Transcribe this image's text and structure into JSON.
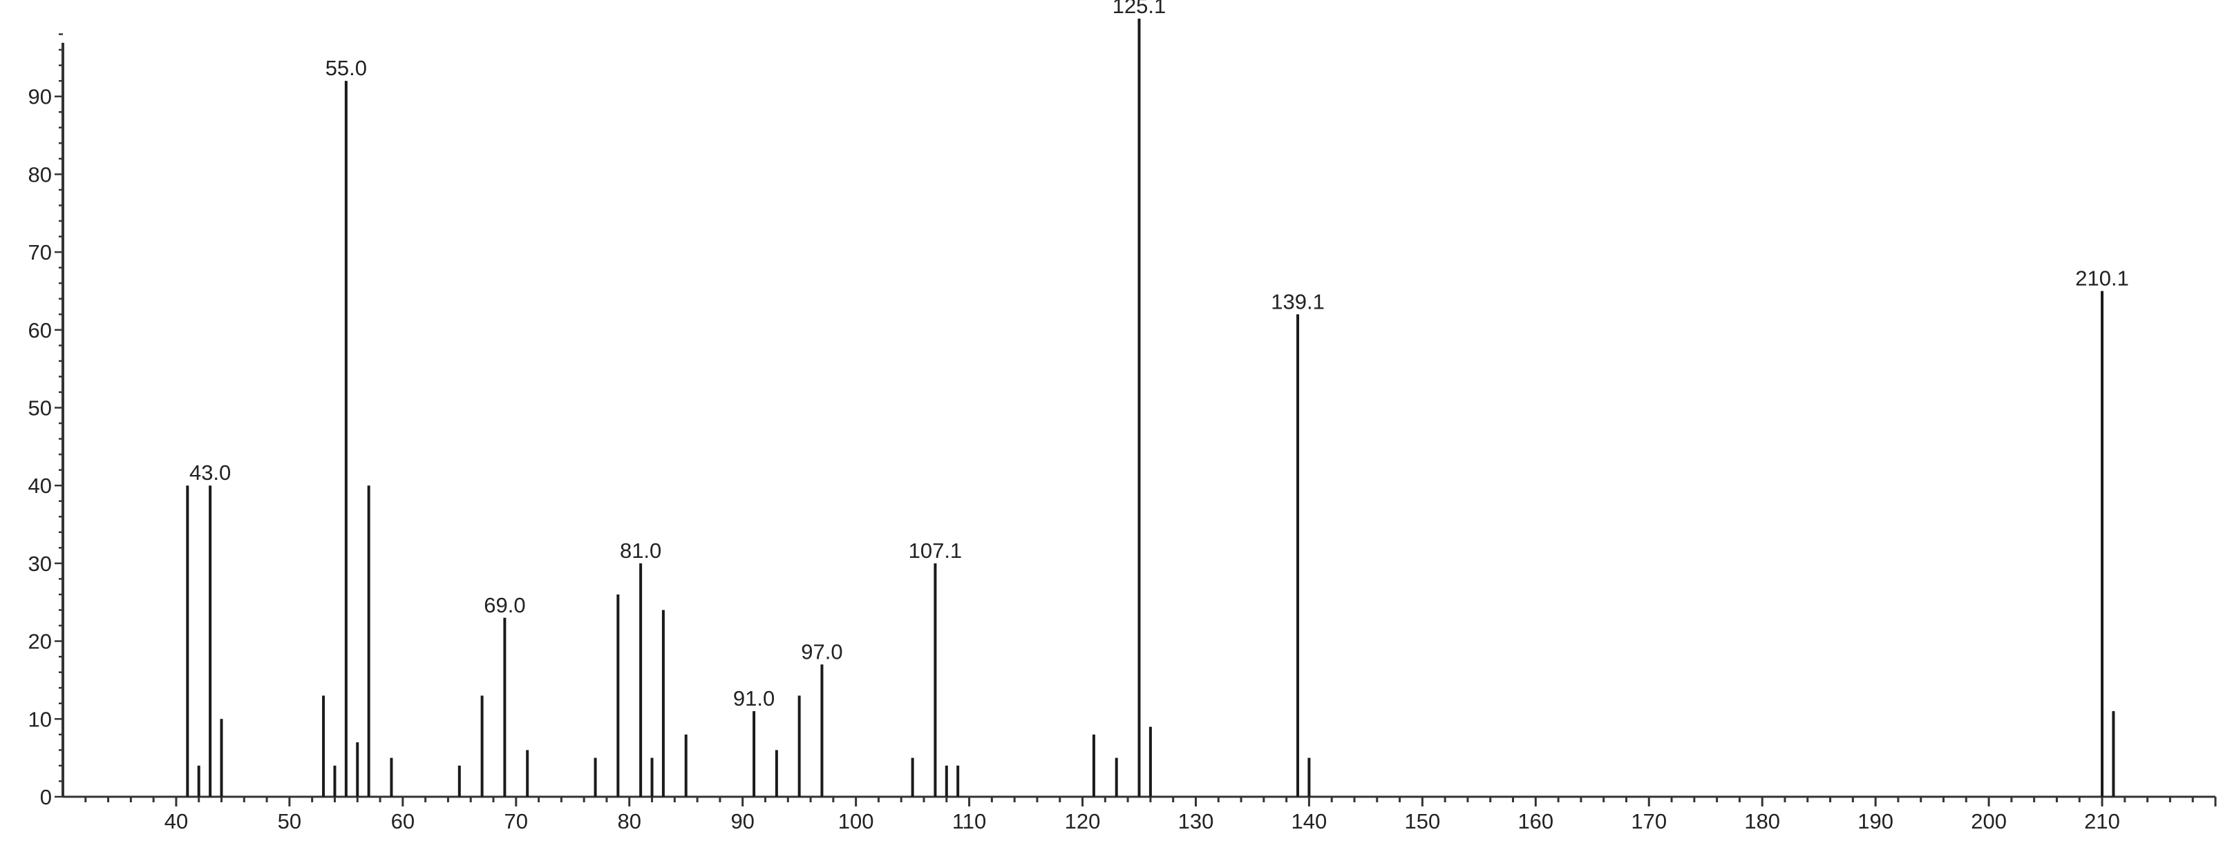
{
  "chart_data": {
    "type": "bar",
    "subtype": "mass-spectrum-stick",
    "title": "",
    "xlabel": "",
    "ylabel": "",
    "xlim": [
      30,
      220
    ],
    "ylim": [
      0,
      100
    ],
    "grid": false,
    "x_ticks": [
      40,
      50,
      60,
      70,
      80,
      90,
      100,
      110,
      120,
      130,
      140,
      150,
      160,
      170,
      180,
      190,
      200,
      210
    ],
    "y_ticks": [
      0,
      10,
      20,
      30,
      40,
      50,
      60,
      70,
      80,
      90
    ],
    "color": "#1a1a1a",
    "peaks": [
      {
        "x": 41,
        "y": 40
      },
      {
        "x": 42,
        "y": 4
      },
      {
        "x": 43,
        "y": 40,
        "label": "43.0"
      },
      {
        "x": 44,
        "y": 10
      },
      {
        "x": 53,
        "y": 13
      },
      {
        "x": 54,
        "y": 4
      },
      {
        "x": 55,
        "y": 92,
        "label": "55.0"
      },
      {
        "x": 56,
        "y": 7
      },
      {
        "x": 57,
        "y": 40
      },
      {
        "x": 59,
        "y": 5
      },
      {
        "x": 65,
        "y": 4
      },
      {
        "x": 67,
        "y": 13
      },
      {
        "x": 69,
        "y": 23,
        "label": "69.0"
      },
      {
        "x": 71,
        "y": 6
      },
      {
        "x": 77,
        "y": 5
      },
      {
        "x": 79,
        "y": 26
      },
      {
        "x": 81,
        "y": 30,
        "label": "81.0"
      },
      {
        "x": 82,
        "y": 5
      },
      {
        "x": 83,
        "y": 24
      },
      {
        "x": 85,
        "y": 8
      },
      {
        "x": 91,
        "y": 11,
        "label": "91.0"
      },
      {
        "x": 93,
        "y": 6
      },
      {
        "x": 95,
        "y": 13
      },
      {
        "x": 97,
        "y": 17,
        "label": "97.0"
      },
      {
        "x": 105,
        "y": 5
      },
      {
        "x": 107,
        "y": 30,
        "label": "107.1"
      },
      {
        "x": 108,
        "y": 4
      },
      {
        "x": 109,
        "y": 4
      },
      {
        "x": 121,
        "y": 8
      },
      {
        "x": 123,
        "y": 5
      },
      {
        "x": 125,
        "y": 100,
        "label": "125.1"
      },
      {
        "x": 126,
        "y": 9
      },
      {
        "x": 139,
        "y": 62,
        "label": "139.1"
      },
      {
        "x": 140,
        "y": 5
      },
      {
        "x": 210,
        "y": 65,
        "label": "210.1"
      },
      {
        "x": 211,
        "y": 11
      }
    ]
  }
}
